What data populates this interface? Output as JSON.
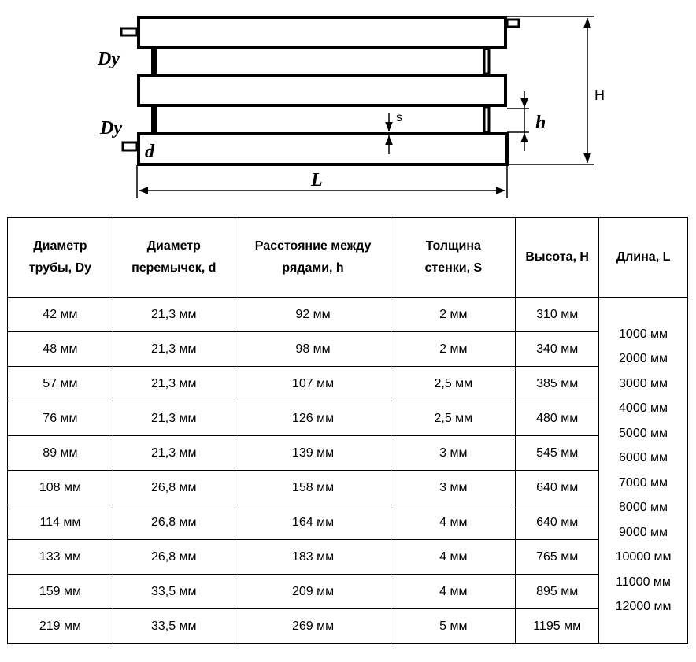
{
  "diagram": {
    "labels": {
      "dy_top": "Dy",
      "dy_bottom": "Dy",
      "d": "d",
      "s": "s",
      "h": "h",
      "H": "H",
      "L": "L"
    }
  },
  "table": {
    "headers": [
      [
        "Диаметр",
        "трубы, Dy"
      ],
      [
        "Диаметр",
        "перемычек, d"
      ],
      [
        "Расстояние между",
        "рядами, h"
      ],
      [
        "Толщина",
        "стенки, S"
      ],
      [
        "Высота, H"
      ],
      [
        "Длина, L"
      ]
    ],
    "rows": [
      [
        "42 мм",
        "21,3 мм",
        "92 мм",
        "2 мм",
        "310 мм"
      ],
      [
        "48 мм",
        "21,3 мм",
        "98 мм",
        "2 мм",
        "340 мм"
      ],
      [
        "57 мм",
        "21,3 мм",
        "107 мм",
        "2,5 мм",
        "385 мм"
      ],
      [
        "76 мм",
        "21,3 мм",
        "126 мм",
        "2,5 мм",
        "480 мм"
      ],
      [
        "89 мм",
        "21,3 мм",
        "139 мм",
        "3 мм",
        "545 мм"
      ],
      [
        "108 мм",
        "26,8 мм",
        "158 мм",
        "3 мм",
        "640 мм"
      ],
      [
        "114 мм",
        "26,8 мм",
        "164 мм",
        "4 мм",
        "640 мм"
      ],
      [
        "133 мм",
        "26,8 мм",
        "183 мм",
        "4 мм",
        "765 мм"
      ],
      [
        "159 мм",
        "33,5 мм",
        "209 мм",
        "4 мм",
        "895 мм"
      ],
      [
        "219 мм",
        "33,5 мм",
        "269 мм",
        "5 мм",
        "1195 мм"
      ]
    ],
    "lengths": [
      "1000 мм",
      "2000 мм",
      "3000 мм",
      "4000 мм",
      "5000 мм",
      "6000 мм",
      "7000 мм",
      "8000 мм",
      "9000 мм",
      "10000 мм",
      "11000 мм",
      "12000 мм"
    ]
  }
}
